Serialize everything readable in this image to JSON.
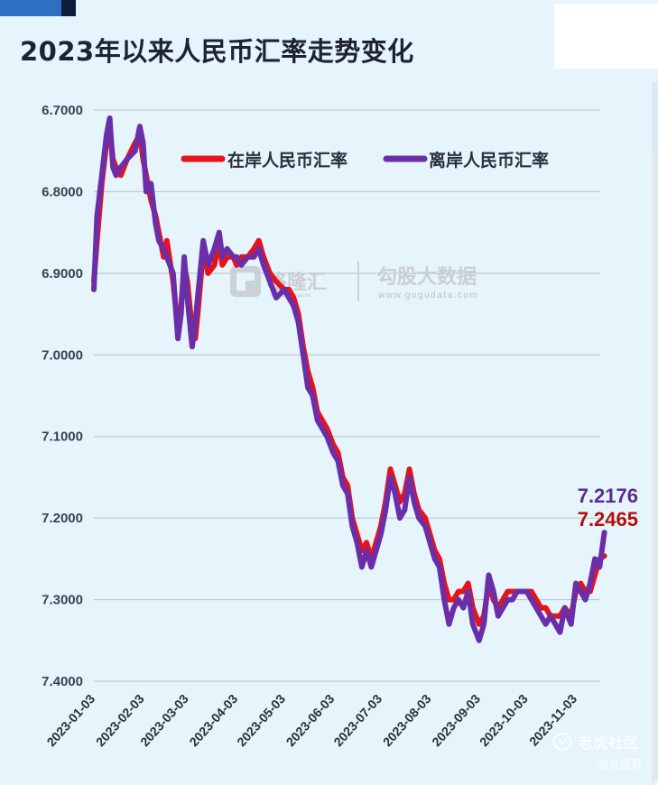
{
  "title": "2023年以来人民币汇率走势变化",
  "watermark": {
    "logo_text": "格隆汇",
    "logo_url": "www.gelonghui.com",
    "brand2": "勾股大数据",
    "brand2_url": "www.gogudata.com"
  },
  "corner_watermark": {
    "line1": "老虎社区",
    "line2": "@证悟君"
  },
  "colors": {
    "onshore": "#e8121c",
    "offshore": "#6a2fa8",
    "onshore_label": "#b40d0d",
    "offshore_label": "#5b2c91",
    "grid": "#b9c3cd",
    "background": "#e6f4fb"
  },
  "chart_data": {
    "type": "line",
    "title": "2023年以来人民币汇率走势变化",
    "xlabel": "",
    "ylabel": "",
    "y_inverted": true,
    "ylim": [
      6.7,
      7.4
    ],
    "yticks": [
      "6.7000",
      "6.8000",
      "6.9000",
      "7.0000",
      "7.1000",
      "7.2000",
      "7.3000",
      "7.4000"
    ],
    "xticks": [
      "2023-01-03",
      "2023-02-03",
      "2023-03-03",
      "2023-04-03",
      "2023-05-03",
      "2023-06-03",
      "2023-07-03",
      "2023-08-03",
      "2023-09-03",
      "2023-10-03",
      "2023-11-03"
    ],
    "grid": true,
    "legend_position": "top",
    "series": [
      {
        "name": "在岸人民币汇率",
        "color": "#e8121c",
        "end_label": "7.2465",
        "points": [
          [
            "2023-01-03",
            6.91
          ],
          [
            "2023-01-05",
            6.86
          ],
          [
            "2023-01-08",
            6.79
          ],
          [
            "2023-01-11",
            6.74
          ],
          [
            "2023-01-13",
            6.72
          ],
          [
            "2023-01-15",
            6.76
          ],
          [
            "2023-01-17",
            6.77
          ],
          [
            "2023-01-20",
            6.78
          ],
          [
            "2023-01-24",
            6.76
          ],
          [
            "2023-01-29",
            6.74
          ],
          [
            "2023-02-01",
            6.73
          ],
          [
            "2023-02-03",
            6.76
          ],
          [
            "2023-02-05",
            6.78
          ],
          [
            "2023-02-08",
            6.81
          ],
          [
            "2023-02-11",
            6.83
          ],
          [
            "2023-02-13",
            6.85
          ],
          [
            "2023-02-16",
            6.88
          ],
          [
            "2023-02-18",
            6.86
          ],
          [
            "2023-02-22",
            6.91
          ],
          [
            "2023-02-25",
            6.97
          ],
          [
            "2023-02-27",
            6.94
          ],
          [
            "2023-03-01",
            6.89
          ],
          [
            "2023-03-03",
            6.91
          ],
          [
            "2023-03-06",
            6.97
          ],
          [
            "2023-03-08",
            6.98
          ],
          [
            "2023-03-10",
            6.94
          ],
          [
            "2023-03-13",
            6.87
          ],
          [
            "2023-03-16",
            6.9
          ],
          [
            "2023-03-20",
            6.89
          ],
          [
            "2023-03-23",
            6.86
          ],
          [
            "2023-03-25",
            6.89
          ],
          [
            "2023-03-28",
            6.88
          ],
          [
            "2023-04-01",
            6.88
          ],
          [
            "2023-04-03",
            6.89
          ],
          [
            "2023-04-06",
            6.88
          ],
          [
            "2023-04-10",
            6.88
          ],
          [
            "2023-04-14",
            6.87
          ],
          [
            "2023-04-17",
            6.86
          ],
          [
            "2023-04-20",
            6.88
          ],
          [
            "2023-04-24",
            6.9
          ],
          [
            "2023-04-28",
            6.91
          ],
          [
            "2023-05-03",
            6.92
          ],
          [
            "2023-05-06",
            6.92
          ],
          [
            "2023-05-09",
            6.93
          ],
          [
            "2023-05-12",
            6.95
          ],
          [
            "2023-05-15",
            6.99
          ],
          [
            "2023-05-18",
            7.02
          ],
          [
            "2023-05-21",
            7.04
          ],
          [
            "2023-05-24",
            7.07
          ],
          [
            "2023-05-27",
            7.08
          ],
          [
            "2023-05-30",
            7.09
          ],
          [
            "2023-06-03",
            7.11
          ],
          [
            "2023-06-06",
            7.12
          ],
          [
            "2023-06-09",
            7.15
          ],
          [
            "2023-06-12",
            7.16
          ],
          [
            "2023-06-15",
            7.2
          ],
          [
            "2023-06-18",
            7.22
          ],
          [
            "2023-06-21",
            7.24
          ],
          [
            "2023-06-24",
            7.23
          ],
          [
            "2023-06-27",
            7.25
          ],
          [
            "2023-07-03",
            7.21
          ],
          [
            "2023-07-06",
            7.18
          ],
          [
            "2023-07-09",
            7.14
          ],
          [
            "2023-07-12",
            7.16
          ],
          [
            "2023-07-15",
            7.18
          ],
          [
            "2023-07-18",
            7.17
          ],
          [
            "2023-07-21",
            7.14
          ],
          [
            "2023-07-24",
            7.17
          ],
          [
            "2023-07-27",
            7.19
          ],
          [
            "2023-07-31",
            7.2
          ],
          [
            "2023-08-03",
            7.22
          ],
          [
            "2023-08-06",
            7.24
          ],
          [
            "2023-08-09",
            7.25
          ],
          [
            "2023-08-12",
            7.28
          ],
          [
            "2023-08-15",
            7.3
          ],
          [
            "2023-08-18",
            7.3
          ],
          [
            "2023-08-21",
            7.29
          ],
          [
            "2023-08-24",
            7.29
          ],
          [
            "2023-08-27",
            7.28
          ],
          [
            "2023-08-30",
            7.31
          ],
          [
            "2023-09-03",
            7.33
          ],
          [
            "2023-09-06",
            7.32
          ],
          [
            "2023-09-09",
            7.28
          ],
          [
            "2023-09-12",
            7.3
          ],
          [
            "2023-09-15",
            7.31
          ],
          [
            "2023-09-18",
            7.3
          ],
          [
            "2023-09-21",
            7.29
          ],
          [
            "2023-09-24",
            7.29
          ],
          [
            "2023-09-27",
            7.29
          ],
          [
            "2023-10-03",
            7.29
          ],
          [
            "2023-10-06",
            7.29
          ],
          [
            "2023-10-09",
            7.3
          ],
          [
            "2023-10-12",
            7.31
          ],
          [
            "2023-10-15",
            7.31
          ],
          [
            "2023-10-18",
            7.32
          ],
          [
            "2023-10-21",
            7.32
          ],
          [
            "2023-10-24",
            7.32
          ],
          [
            "2023-10-27",
            7.31
          ],
          [
            "2023-10-31",
            7.32
          ],
          [
            "2023-11-03",
            7.29
          ],
          [
            "2023-11-06",
            7.28
          ],
          [
            "2023-11-09",
            7.29
          ],
          [
            "2023-11-12",
            7.29
          ],
          [
            "2023-11-15",
            7.27
          ],
          [
            "2023-11-18",
            7.25
          ],
          [
            "2023-11-21",
            7.2465
          ]
        ]
      },
      {
        "name": "离岸人民币汇率",
        "color": "#6a2fa8",
        "end_label": "7.2176",
        "points": [
          [
            "2023-01-03",
            6.92
          ],
          [
            "2023-01-05",
            6.83
          ],
          [
            "2023-01-08",
            6.78
          ],
          [
            "2023-01-11",
            6.73
          ],
          [
            "2023-01-13",
            6.71
          ],
          [
            "2023-01-15",
            6.77
          ],
          [
            "2023-01-17",
            6.78
          ],
          [
            "2023-01-20",
            6.77
          ],
          [
            "2023-01-24",
            6.76
          ],
          [
            "2023-01-29",
            6.75
          ],
          [
            "2023-02-01",
            6.72
          ],
          [
            "2023-02-03",
            6.74
          ],
          [
            "2023-02-05",
            6.8
          ],
          [
            "2023-02-08",
            6.79
          ],
          [
            "2023-02-11",
            6.84
          ],
          [
            "2023-02-13",
            6.86
          ],
          [
            "2023-02-16",
            6.87
          ],
          [
            "2023-02-18",
            6.88
          ],
          [
            "2023-02-22",
            6.9
          ],
          [
            "2023-02-25",
            6.98
          ],
          [
            "2023-02-27",
            6.95
          ],
          [
            "2023-03-01",
            6.88
          ],
          [
            "2023-03-03",
            6.93
          ],
          [
            "2023-03-06",
            6.99
          ],
          [
            "2023-03-08",
            6.96
          ],
          [
            "2023-03-10",
            6.92
          ],
          [
            "2023-03-13",
            6.86
          ],
          [
            "2023-03-16",
            6.89
          ],
          [
            "2023-03-20",
            6.87
          ],
          [
            "2023-03-23",
            6.85
          ],
          [
            "2023-03-25",
            6.88
          ],
          [
            "2023-03-28",
            6.87
          ],
          [
            "2023-04-01",
            6.88
          ],
          [
            "2023-04-03",
            6.88
          ],
          [
            "2023-04-06",
            6.89
          ],
          [
            "2023-04-10",
            6.88
          ],
          [
            "2023-04-14",
            6.88
          ],
          [
            "2023-04-17",
            6.87
          ],
          [
            "2023-04-20",
            6.89
          ],
          [
            "2023-04-24",
            6.91
          ],
          [
            "2023-04-28",
            6.93
          ],
          [
            "2023-05-03",
            6.92
          ],
          [
            "2023-05-06",
            6.93
          ],
          [
            "2023-05-09",
            6.94
          ],
          [
            "2023-05-12",
            6.96
          ],
          [
            "2023-05-15",
            7.0
          ],
          [
            "2023-05-18",
            7.04
          ],
          [
            "2023-05-21",
            7.05
          ],
          [
            "2023-05-24",
            7.08
          ],
          [
            "2023-05-27",
            7.09
          ],
          [
            "2023-05-30",
            7.1
          ],
          [
            "2023-06-03",
            7.12
          ],
          [
            "2023-06-06",
            7.13
          ],
          [
            "2023-06-09",
            7.16
          ],
          [
            "2023-06-12",
            7.17
          ],
          [
            "2023-06-15",
            7.21
          ],
          [
            "2023-06-18",
            7.23
          ],
          [
            "2023-06-21",
            7.26
          ],
          [
            "2023-06-24",
            7.24
          ],
          [
            "2023-06-27",
            7.26
          ],
          [
            "2023-07-03",
            7.22
          ],
          [
            "2023-07-06",
            7.19
          ],
          [
            "2023-07-09",
            7.15
          ],
          [
            "2023-07-12",
            7.17
          ],
          [
            "2023-07-15",
            7.2
          ],
          [
            "2023-07-18",
            7.19
          ],
          [
            "2023-07-21",
            7.15
          ],
          [
            "2023-07-24",
            7.18
          ],
          [
            "2023-07-27",
            7.2
          ],
          [
            "2023-07-31",
            7.21
          ],
          [
            "2023-08-03",
            7.23
          ],
          [
            "2023-08-06",
            7.25
          ],
          [
            "2023-08-09",
            7.26
          ],
          [
            "2023-08-12",
            7.3
          ],
          [
            "2023-08-15",
            7.33
          ],
          [
            "2023-08-18",
            7.31
          ],
          [
            "2023-08-21",
            7.3
          ],
          [
            "2023-08-24",
            7.31
          ],
          [
            "2023-08-27",
            7.29
          ],
          [
            "2023-08-30",
            7.33
          ],
          [
            "2023-09-03",
            7.35
          ],
          [
            "2023-09-06",
            7.33
          ],
          [
            "2023-09-09",
            7.27
          ],
          [
            "2023-09-12",
            7.29
          ],
          [
            "2023-09-15",
            7.32
          ],
          [
            "2023-09-18",
            7.31
          ],
          [
            "2023-09-21",
            7.3
          ],
          [
            "2023-09-24",
            7.3
          ],
          [
            "2023-09-27",
            7.29
          ],
          [
            "2023-10-03",
            7.29
          ],
          [
            "2023-10-06",
            7.3
          ],
          [
            "2023-10-09",
            7.31
          ],
          [
            "2023-10-12",
            7.32
          ],
          [
            "2023-10-15",
            7.33
          ],
          [
            "2023-10-18",
            7.32
          ],
          [
            "2023-10-21",
            7.33
          ],
          [
            "2023-10-24",
            7.34
          ],
          [
            "2023-10-27",
            7.31
          ],
          [
            "2023-10-31",
            7.33
          ],
          [
            "2023-11-03",
            7.28
          ],
          [
            "2023-11-06",
            7.29
          ],
          [
            "2023-11-09",
            7.3
          ],
          [
            "2023-11-12",
            7.28
          ],
          [
            "2023-11-15",
            7.25
          ],
          [
            "2023-11-18",
            7.26
          ],
          [
            "2023-11-21",
            7.2176
          ]
        ]
      }
    ]
  }
}
